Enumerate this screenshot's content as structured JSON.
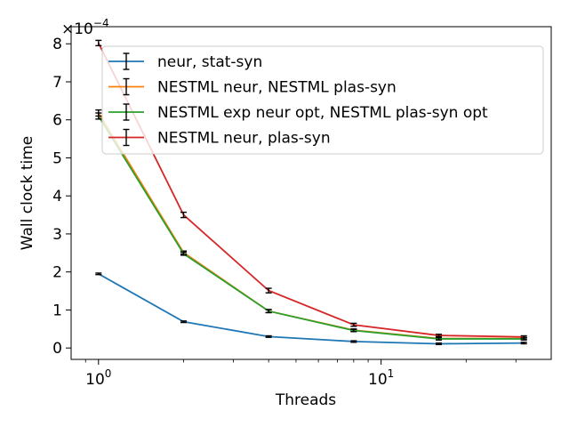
{
  "chart_data": {
    "type": "line",
    "xlabel": "Threads",
    "ylabel": "Wall clock time",
    "x_scale": "log",
    "xlim": [
      0.8,
      40
    ],
    "ylim": [
      -0.3,
      8.45
    ],
    "y_multiplier": "×10",
    "y_multiplier_exp": "−4",
    "x_ticks": [
      {
        "value": 1,
        "base": "10",
        "exp": "0"
      },
      {
        "value": 10,
        "base": "10",
        "exp": "1"
      }
    ],
    "y_ticks": [
      {
        "value": 0,
        "label": "0"
      },
      {
        "value": 1,
        "label": "1"
      },
      {
        "value": 2,
        "label": "2"
      },
      {
        "value": 3,
        "label": "3"
      },
      {
        "value": 4,
        "label": "4"
      },
      {
        "value": 5,
        "label": "5"
      },
      {
        "value": 6,
        "label": "6"
      },
      {
        "value": 7,
        "label": "7"
      },
      {
        "value": 8,
        "label": "8"
      }
    ],
    "x": [
      1,
      2,
      4,
      8,
      16,
      32
    ],
    "series": [
      {
        "name": "neur, stat-syn",
        "color": "#1f77b4",
        "values": [
          1.95,
          0.69,
          0.3,
          0.17,
          0.11,
          0.13
        ],
        "errors": [
          0.02,
          0.02,
          0.02,
          0.02,
          0.02,
          0.02
        ]
      },
      {
        "name": "NESTML neur, NESTML plas-syn",
        "color": "#ff7f0e",
        "values": [
          6.18,
          2.51,
          0.97,
          0.47,
          0.25,
          0.25
        ],
        "errors": [
          0.08,
          0.04,
          0.04,
          0.03,
          0.03,
          0.03
        ]
      },
      {
        "name": "NESTML exp neur opt, NESTML plas-syn opt",
        "color": "#2ca02c",
        "values": [
          6.1,
          2.48,
          0.97,
          0.46,
          0.24,
          0.24
        ],
        "errors": [
          0.08,
          0.04,
          0.04,
          0.03,
          0.03,
          0.03
        ]
      },
      {
        "name": "NESTML neur, plas-syn",
        "color": "#d62728",
        "values": [
          8.02,
          3.5,
          1.51,
          0.61,
          0.33,
          0.29
        ],
        "errors": [
          0.07,
          0.07,
          0.06,
          0.04,
          0.03,
          0.03
        ]
      }
    ],
    "legend_position": "top-right",
    "grid": false
  }
}
